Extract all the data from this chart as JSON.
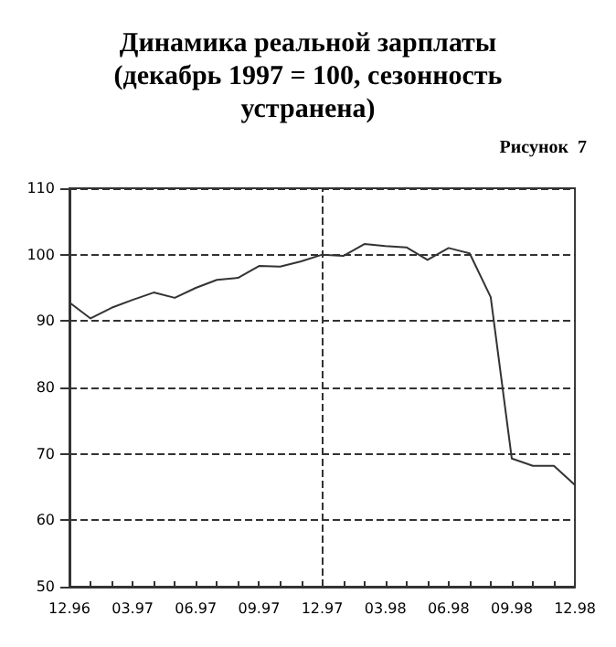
{
  "chart_data": {
    "type": "line",
    "title": "Динамика реальной зарплаты\n(декабрь 1997 = 100, сезонность\nустранена)",
    "annotations": [
      "Рисунок  7"
    ],
    "categories": [
      "12.96",
      null,
      null,
      "03.97",
      null,
      null,
      "06.97",
      null,
      null,
      "09.97",
      null,
      null,
      "12.97",
      null,
      null,
      "03.98",
      null,
      null,
      "06.98",
      null,
      null,
      "09.98",
      null,
      null,
      "12.98"
    ],
    "series": [
      {
        "color": "#333333",
        "values": [
          92.8,
          90.4,
          92,
          93.2,
          94.3,
          93.5,
          95,
          96.2,
          96.5,
          98.3,
          98.2,
          99,
          100,
          99.8,
          101.6,
          101.3,
          101.1,
          99.2,
          101,
          100.2,
          93.6,
          69.3,
          68.2,
          68.2,
          65.3
        ]
      }
    ],
    "ylim": [
      50,
      110
    ],
    "yticks": [
      50,
      60,
      70,
      80,
      90,
      100,
      110
    ],
    "grid": "y",
    "marker": "none",
    "line_style": "solid",
    "ref_lines": [
      {
        "axis": "x",
        "value": "12.97",
        "line_style": "dashed",
        "color": "#333333"
      }
    ]
  }
}
